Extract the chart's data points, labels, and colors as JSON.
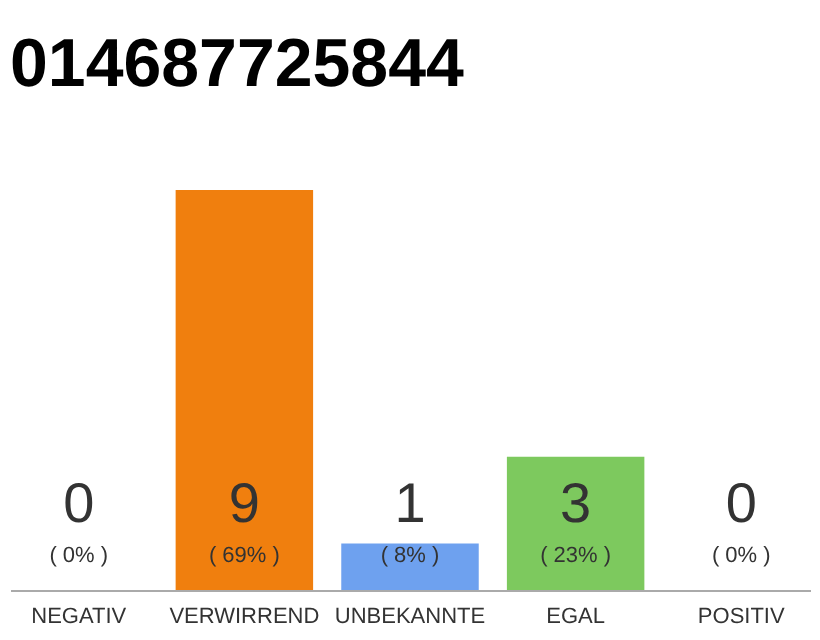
{
  "chart_data": {
    "type": "bar",
    "title": "014687725844",
    "categories": [
      "NEGATIV",
      "VERWIRREND",
      "UNBEKANNTE",
      "EGAL",
      "POSITIV"
    ],
    "values": [
      0,
      69,
      8,
      23,
      0
    ],
    "colors": [
      "#d9534f",
      "#f07f0e",
      "#6ea1ef",
      "#7dc95e",
      "#5cb85c"
    ],
    "value_labels": [
      "( 0% )",
      "( 69% )",
      "( 8% )",
      "( 23% )",
      "( 0% )"
    ],
    "annotations": [
      "0",
      "9",
      "1",
      "3",
      "0"
    ],
    "tick_labels": "x",
    "grid": false
  }
}
